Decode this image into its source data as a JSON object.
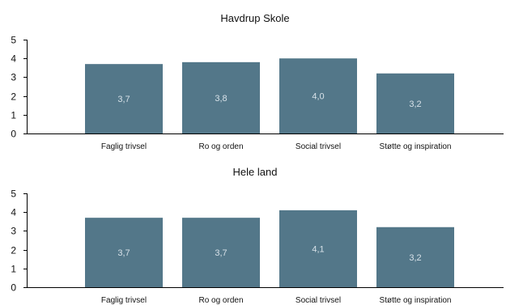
{
  "colors": {
    "bar": "#537789",
    "axis": "#000000"
  },
  "chart_data": [
    {
      "type": "bar",
      "title": "Havdrup Skole",
      "categories": [
        "Faglig trivsel",
        "Ro og orden",
        "Social trivsel",
        "Støtte og inspiration"
      ],
      "values": [
        3.7,
        3.8,
        4.0,
        3.2
      ],
      "value_labels": [
        "3,7",
        "3,8",
        "4,0",
        "3,2"
      ],
      "y_ticks": [
        "0",
        "1",
        "2",
        "3",
        "4",
        "5"
      ],
      "ylim": [
        0,
        5
      ],
      "xlabel": "",
      "ylabel": "",
      "grid": false,
      "legend": "none"
    },
    {
      "type": "bar",
      "title": "Hele land",
      "categories": [
        "Faglig trivsel",
        "Ro og orden",
        "Social trivsel",
        "Støtte og inspiration"
      ],
      "values": [
        3.7,
        3.7,
        4.1,
        3.2
      ],
      "value_labels": [
        "3,7",
        "3,7",
        "4,1",
        "3,2"
      ],
      "y_ticks": [
        "0",
        "1",
        "2",
        "3",
        "4",
        "5"
      ],
      "ylim": [
        0,
        5
      ],
      "xlabel": "",
      "ylabel": "",
      "grid": false,
      "legend": "none"
    }
  ]
}
